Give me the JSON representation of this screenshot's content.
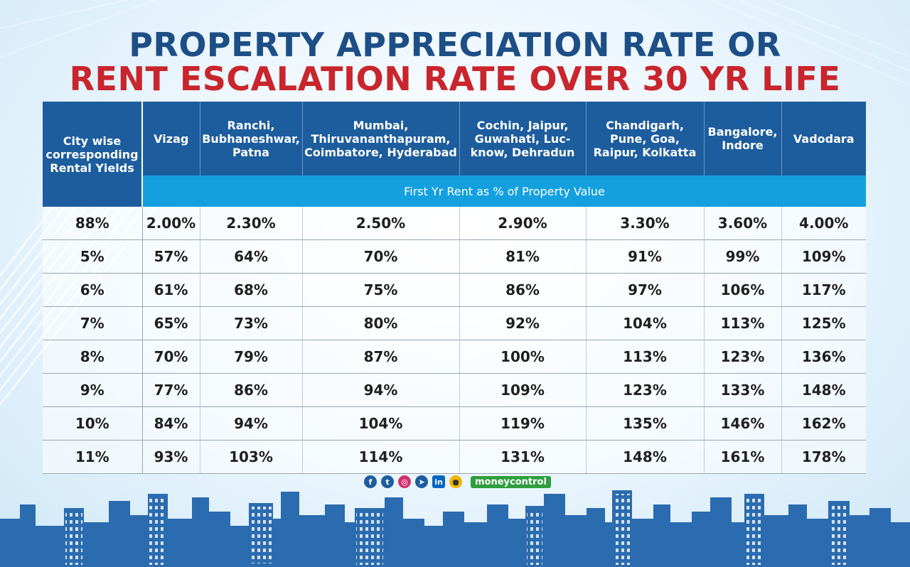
{
  "title": {
    "line1": "PROPERTY APPRECIATION RATE OR",
    "line2": "RENT ESCALATION RATE OVER 30 YR LIFE"
  },
  "chart_data": {
    "type": "table",
    "row_header_label": "City wise corresponding Rental Yields",
    "columns": [
      "Vizag",
      "Ranchi, Bubhaneshwar, Patna",
      "Mumbai, Thiruvananthapuram, Coimbatore, Hyderabad",
      "Cochin, Jaipur, Guwahati, Luc-know, Dehradun",
      "Chandigarh, Pune, Goa, Raipur, Kolkatta",
      "Bangalore, Indore",
      "Vadodara"
    ],
    "subheader": "First Yr Rent as % of Property Value",
    "rows": [
      {
        "label": "88%",
        "values": [
          "2.00%",
          "2.30%",
          "2.50%",
          "2.90%",
          "3.30%",
          "3.60%",
          "4.00%"
        ]
      },
      {
        "label": "5%",
        "values": [
          "57%",
          "64%",
          "70%",
          "81%",
          "91%",
          "99%",
          "109%"
        ]
      },
      {
        "label": "6%",
        "values": [
          "61%",
          "68%",
          "75%",
          "86%",
          "97%",
          "106%",
          "117%"
        ]
      },
      {
        "label": "7%",
        "values": [
          "65%",
          "73%",
          "80%",
          "92%",
          "104%",
          "113%",
          "125%"
        ]
      },
      {
        "label": "8%",
        "values": [
          "70%",
          "79%",
          "87%",
          "100%",
          "113%",
          "123%",
          "136%"
        ]
      },
      {
        "label": "9%",
        "values": [
          "77%",
          "86%",
          "94%",
          "109%",
          "123%",
          "133%",
          "148%"
        ]
      },
      {
        "label": "10%",
        "values": [
          "84%",
          "94%",
          "104%",
          "119%",
          "135%",
          "146%",
          "162%"
        ]
      },
      {
        "label": "11%",
        "values": [
          "93%",
          "103%",
          "114%",
          "131%",
          "148%",
          "161%",
          "178%"
        ]
      }
    ]
  },
  "footer": {
    "brand": "moneycontrol",
    "social_icons": [
      "facebook-icon",
      "twitter-icon",
      "instagram-icon",
      "telegram-icon",
      "linkedin-icon",
      "koo-icon"
    ]
  },
  "colors": {
    "title_blue": "#1d4f86",
    "title_red": "#c9252d",
    "header_blue": "#1d5d9e",
    "subheader_blue": "#14a0df"
  }
}
